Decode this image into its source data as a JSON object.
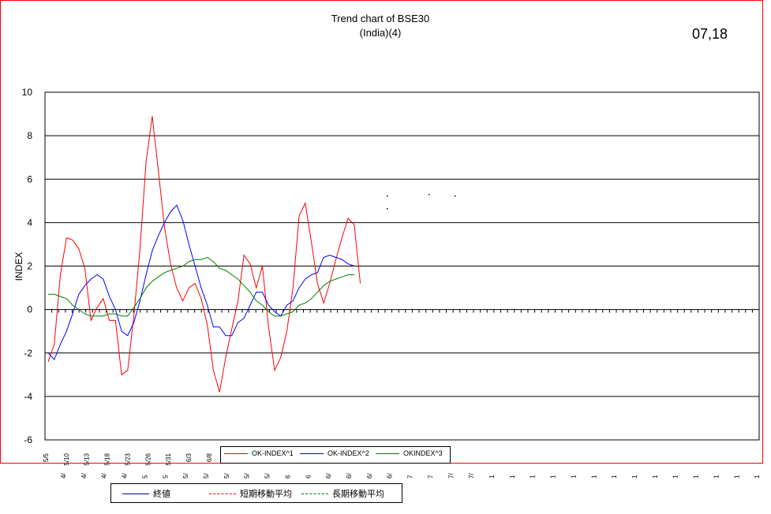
{
  "chart_data": {
    "type": "line",
    "title": "Trend chart of BSE30",
    "subtitle": "(India)(4)",
    "corner_label": "07,18",
    "ylabel": "INDEX",
    "ylim": [
      -6,
      10
    ],
    "yticks": [
      -6,
      -4,
      -2,
      0,
      2,
      4,
      6,
      8,
      10
    ],
    "grid": true,
    "x_tick_labels": [
      "5/5",
      "5/10",
      "5/13",
      "5/18",
      "5/23",
      "5/26",
      "5/31",
      "6/3",
      "6/8",
      "",
      "",
      "",
      "",
      "",
      "",
      "",
      "",
      "",
      "",
      "",
      "",
      "",
      "",
      "",
      "",
      "",
      "",
      "",
      "",
      "",
      "",
      "",
      "",
      "",
      "",
      "",
      "",
      "",
      "",
      "",
      "",
      "",
      "",
      "",
      "",
      "",
      "",
      "",
      "",
      "",
      "",
      "",
      "",
      "",
      "",
      "",
      "",
      "",
      "",
      "",
      "",
      "",
      "",
      "",
      "",
      "",
      "",
      "",
      "",
      "",
      "",
      "",
      "",
      "",
      "",
      "",
      "",
      "",
      "",
      "",
      "",
      "",
      "",
      "",
      "",
      "",
      "",
      "",
      "",
      "",
      "",
      "",
      "",
      "",
      "",
      "",
      "",
      "",
      "",
      "",
      "",
      "",
      "",
      "",
      "",
      "",
      "",
      "",
      "",
      "",
      "",
      "",
      "",
      "",
      ""
    ],
    "x_tick_labels_row2": [
      "4/",
      "4/",
      "4/",
      "4/",
      "5",
      "5",
      "5/",
      "5/",
      "5/",
      "5/",
      "5/",
      "6",
      "6",
      "6/",
      "6/",
      "6/",
      "6/",
      "7",
      "7",
      "7/",
      "7/",
      "1",
      "1",
      "1",
      "1",
      "1",
      "1",
      "1",
      "1",
      "1",
      "1",
      "1",
      "1",
      "1",
      "1"
    ],
    "series": [
      {
        "name": "OK-INDEX^1",
        "color": "#ff0000",
        "values": [
          -2.4,
          -1.6,
          1.6,
          3.3,
          3.2,
          2.8,
          1.9,
          -0.5,
          0.1,
          0.5,
          -0.5,
          -0.5,
          -3.0,
          -2.8,
          -0.3,
          2.8,
          6.8,
          8.9,
          6.4,
          3.8,
          2.1,
          1.0,
          0.4,
          1.0,
          1.2,
          0.5,
          -0.7,
          -2.8,
          -3.8,
          -2.2,
          -0.9,
          0.4,
          2.5,
          2.1,
          1.0,
          2.0,
          -0.8,
          -2.8,
          -2.2,
          -1.0,
          1.0,
          4.3,
          4.9,
          3.1,
          1.2,
          0.3,
          1.2,
          2.3,
          3.3,
          4.2,
          3.9,
          1.2
        ]
      },
      {
        "name": "OK-INDEX^2",
        "color": "#0000ff",
        "values": [
          -2.0,
          -2.3,
          -1.6,
          -1.0,
          -0.2,
          0.7,
          1.1,
          1.4,
          1.6,
          1.4,
          0.6,
          0.0,
          -1.0,
          -1.2,
          -0.6,
          0.4,
          1.6,
          2.7,
          3.4,
          4.0,
          4.5,
          4.8,
          4.1,
          3.0,
          2.0,
          1.0,
          0.2,
          -0.8,
          -0.8,
          -1.2,
          -1.2,
          -0.6,
          -0.4,
          0.2,
          0.8,
          0.8,
          0.2,
          -0.1,
          -0.3,
          0.2,
          0.4,
          1.0,
          1.4,
          1.6,
          1.7,
          2.4,
          2.5,
          2.4,
          2.3,
          2.1,
          2.0
        ]
      },
      {
        "name": "OKINDEX^3",
        "color": "#008000",
        "values": [
          0.7,
          0.7,
          0.6,
          0.5,
          0.2,
          0.0,
          -0.2,
          -0.3,
          -0.3,
          -0.3,
          -0.2,
          -0.2,
          -0.3,
          -0.3,
          0.1,
          0.5,
          1.0,
          1.3,
          1.5,
          1.7,
          1.8,
          1.9,
          2.0,
          2.2,
          2.3,
          2.3,
          2.4,
          2.2,
          1.9,
          1.8,
          1.6,
          1.4,
          1.1,
          0.8,
          0.4,
          0.2,
          -0.1,
          -0.3,
          -0.3,
          -0.2,
          -0.1,
          0.2,
          0.3,
          0.5,
          0.8,
          1.1,
          1.3,
          1.4,
          1.5,
          1.6,
          1.6
        ]
      }
    ],
    "legend_inner": [
      "OK-INDEX^1",
      "OK-INDEX^2",
      "OKINDEX^3"
    ],
    "legend_inner_placement": "bottom-center",
    "legend_outer": [
      {
        "label": "終値",
        "color": "#000080",
        "style": "solid"
      },
      {
        "label": "短期移動平均",
        "color": "#ff0000",
        "style": "dashed"
      },
      {
        "label": "長期移動平均",
        "color": "#008000",
        "style": "dashed"
      }
    ],
    "legend_outer_placement": "below-chart-left"
  }
}
